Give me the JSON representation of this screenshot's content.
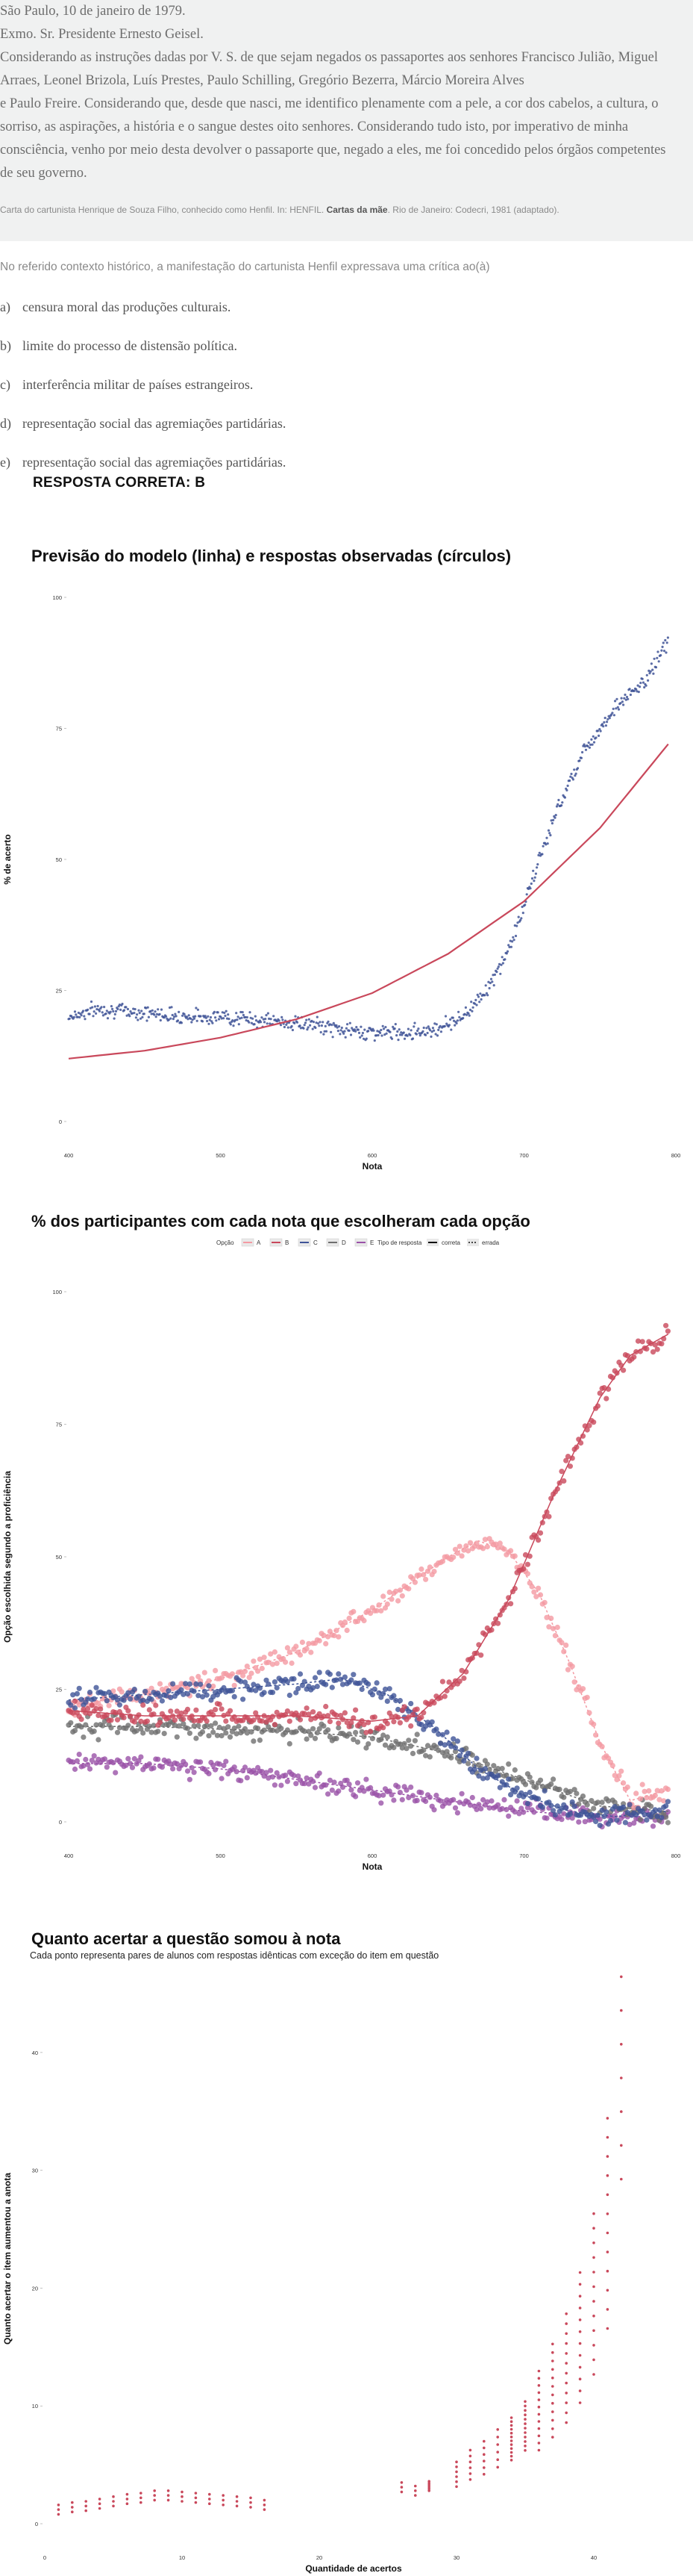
{
  "letter": {
    "lines": [
      "São Paulo, 10 de janeiro de 1979.",
      "Exmo. Sr. Presidente Ernesto Geisel.",
      "Considerando as instruções dadas por V. S. de que sejam negados os passaportes aos senhores Francisco Julião, Miguel",
      "Arraes, Leonel Brizola, Luís Prestes, Paulo Schilling, Gregório Bezerra, Márcio Moreira Alves",
      "e Paulo Freire. Considerando que, desde que nasci, me identifico plenamente com a pele, a cor dos cabelos, a cultura, o",
      "sorriso, as aspirações, a história e o sangue destes oito senhores. Considerando tudo isto, por imperativo de minha",
      "consciência, venho por meio desta devolver o passaporte que, negado a eles, me foi concedido pelos órgãos competentes",
      "de seu governo."
    ],
    "cite_pre": "Carta do cartunista Henrique de Souza Filho, conhecido como Henfil. In: HENFIL. ",
    "cite_bold": "Cartas da mãe",
    "cite_post": ". Rio de Janeiro: Codecri, 1981 (adaptado)."
  },
  "question": {
    "stem": "No referido contexto histórico, a manifestação do cartunista Henfil expressava uma crítica ao(à)",
    "options": [
      {
        "key": "a)",
        "text": "censura moral das produções culturais."
      },
      {
        "key": "b)",
        "text": "limite do processo de distensão política."
      },
      {
        "key": "c)",
        "text": "interferência militar de países estrangeiros."
      },
      {
        "key": "d)",
        "text": "representação social das agremiações partidárias."
      },
      {
        "key": "e)",
        "text": "representação social das agremiações partidárias."
      }
    ],
    "answer": "RESPOSTA CORRETA: B"
  },
  "colors": {
    "red": "#c9485b",
    "blue": "#3f5497",
    "pink": "#f49aa3",
    "gray": "#6f6f6f",
    "purple": "#9a52a8"
  },
  "chart_data": [
    {
      "type": "scatter",
      "title": "Previsão do modelo (linha) e respostas observadas (círculos)",
      "xlabel": "Nota",
      "ylabel": "% de acerto",
      "xticks": [
        "400",
        "500",
        "600",
        "700",
        "800"
      ],
      "yticks": [
        "0",
        "25",
        "50",
        "75",
        "100"
      ],
      "xlim": [
        400,
        800
      ],
      "ylim": [
        0,
        100
      ],
      "series": [
        {
          "mark": "points",
          "x": [
            400,
            420,
            440,
            460,
            480,
            500,
            520,
            540,
            560,
            580,
            600,
            620,
            640,
            660,
            680,
            690,
            700,
            710,
            720,
            730,
            740,
            750,
            760,
            780,
            795
          ],
          "y": [
            20,
            21.5,
            21,
            20.5,
            20,
            20,
            19.5,
            19,
            18.5,
            17.5,
            17,
            17,
            17.5,
            20,
            27,
            33,
            41,
            50,
            58,
            65,
            71,
            75,
            79,
            84,
            92
          ]
        },
        {
          "mark": "line",
          "x": [
            400,
            450,
            500,
            550,
            600,
            650,
            700,
            750,
            795
          ],
          "y": [
            12,
            13.5,
            16,
            19.5,
            24.5,
            32,
            42,
            56,
            72
          ]
        }
      ]
    },
    {
      "type": "scatter",
      "title": "% dos participantes com cada nota que escolheram cada opção",
      "xlabel": "Nota",
      "ylabel": "Opção escolhida segundo a proficiência",
      "xticks": [
        "400",
        "500",
        "600",
        "700",
        "800"
      ],
      "yticks": [
        "0",
        "25",
        "50",
        "75",
        "100"
      ],
      "xlim": [
        400,
        800
      ],
      "ylim": [
        0,
        100
      ],
      "legend_position": "top",
      "legend_option_title": "Opção",
      "legend_type_title": "Tipo de resposta",
      "legend_type_labels": [
        "correta",
        "errada"
      ],
      "series": [
        {
          "name": "A",
          "color": "pink",
          "x": [
            400,
            450,
            500,
            550,
            600,
            650,
            670,
            690,
            710,
            730,
            750,
            770,
            795
          ],
          "y": [
            22,
            24,
            27,
            32,
            40,
            50,
            53,
            51,
            43,
            30,
            15,
            4,
            6
          ]
        },
        {
          "name": "B",
          "color": "red",
          "x": [
            400,
            450,
            500,
            550,
            600,
            630,
            660,
            690,
            720,
            750,
            770,
            795
          ],
          "y": [
            21,
            20,
            20,
            20,
            19,
            20,
            28,
            42,
            62,
            80,
            88,
            92
          ]
        },
        {
          "name": "C",
          "color": "blue",
          "x": [
            400,
            450,
            500,
            550,
            580,
            610,
            640,
            670,
            700,
            730,
            760,
            795
          ],
          "y": [
            23,
            24,
            25,
            26,
            27,
            24,
            18,
            10,
            5,
            2,
            1,
            2
          ]
        },
        {
          "name": "D",
          "color": "gray",
          "x": [
            400,
            450,
            500,
            550,
            600,
            650,
            700,
            750,
            795
          ],
          "y": [
            18,
            18,
            17.5,
            17,
            16,
            13,
            8,
            3,
            2
          ]
        },
        {
          "name": "E",
          "color": "purple",
          "x": [
            400,
            450,
            500,
            550,
            600,
            650,
            700,
            750,
            795
          ],
          "y": [
            11,
            11,
            10,
            8,
            6,
            4,
            2,
            1,
            1
          ]
        }
      ]
    },
    {
      "type": "scatter",
      "title": "Quanto acertar a questão somou à nota",
      "subtitle": "Cada ponto representa pares de alunos com respostas idênticas com exceção do item em questão",
      "xlabel": "Quantidade de acertos",
      "ylabel": "Quanto acertar o item aumentou a anota",
      "xticks": [
        "0",
        "10",
        "20",
        "30",
        "40"
      ],
      "yticks": [
        "0",
        "10",
        "20",
        "30",
        "40"
      ],
      "xlim": [
        0,
        45
      ],
      "ylim": [
        0,
        45
      ],
      "series": [
        {
          "x": [
            1,
            2,
            3,
            4,
            5,
            6,
            7,
            8,
            9,
            10,
            11,
            12,
            13,
            14,
            15,
            16,
            26,
            27,
            28,
            30,
            31,
            32,
            33,
            34,
            35,
            36,
            37,
            38,
            39,
            40,
            41,
            42
          ],
          "y": [
            1.2,
            1.4,
            1.5,
            1.7,
            1.9,
            2.1,
            2.2,
            2.4,
            2.4,
            2.3,
            2.2,
            2.1,
            2,
            1.9,
            1.8,
            1.6,
            3.1,
            2.8,
            3.2,
            4.2,
            5,
            5.6,
            6.4,
            7.2,
            8.3,
            9.6,
            11.3,
            13.2,
            15.8,
            19.5,
            25.5,
            45
          ]
        }
      ]
    }
  ]
}
